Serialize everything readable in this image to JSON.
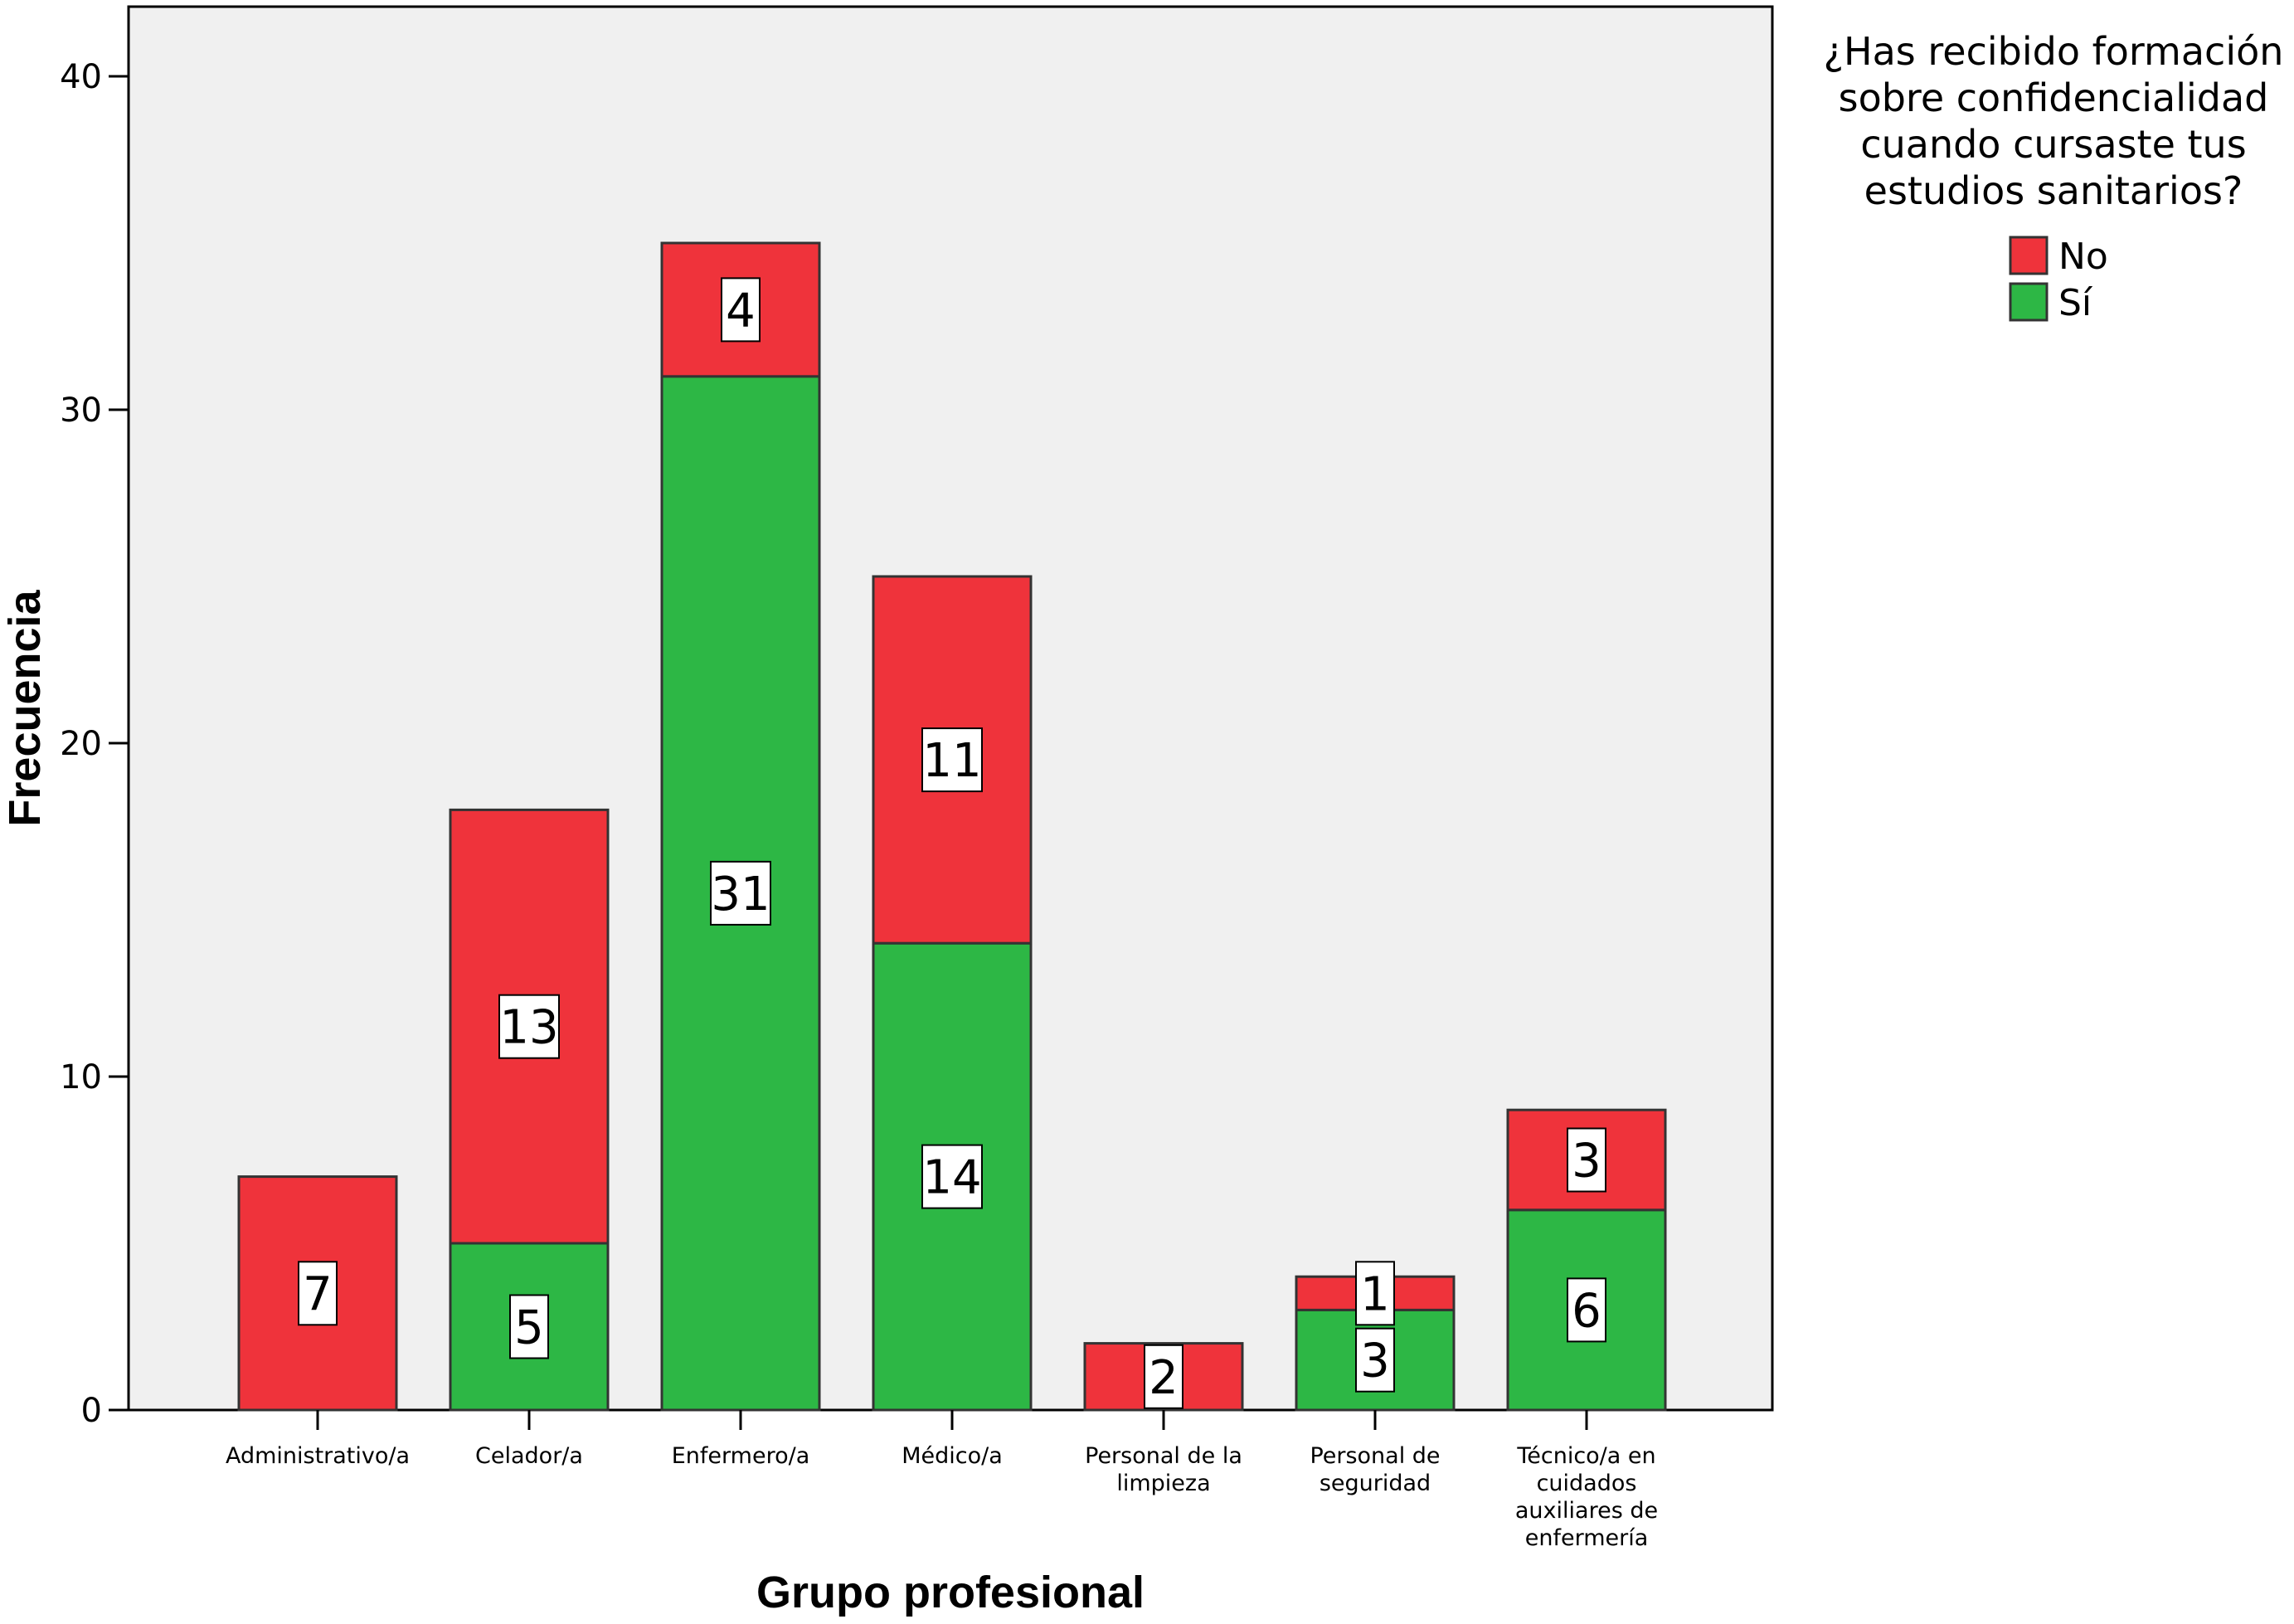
{
  "chart_data": {
    "type": "bar",
    "stacked": true,
    "xlabel": "Grupo profesional",
    "ylabel": "Frecuencia",
    "ylim": [
      0,
      42
    ],
    "yticks": [
      0,
      10,
      20,
      30,
      40
    ],
    "grid": false,
    "legend_position": "top-right",
    "legend_title_lines": [
      "¿Has recibido formación",
      "sobre confidencialidad",
      "cuando cursaste tus",
      "estudios sanitarios?"
    ],
    "categories": [
      [
        "Administrativo/a"
      ],
      [
        "Celador/a"
      ],
      [
        "Enfermero/a"
      ],
      [
        "Médico/a"
      ],
      [
        "Personal de la",
        "limpieza"
      ],
      [
        "Personal de",
        "seguridad"
      ],
      [
        "Técnico/a en",
        "cuidados",
        "auxiliares de",
        "enfermería"
      ]
    ],
    "series": [
      {
        "name": "Sí",
        "color": "#2db745",
        "values": [
          0,
          5,
          31,
          14,
          0,
          3,
          6
        ]
      },
      {
        "name": "No",
        "color": "#ef333b",
        "values": [
          7,
          13,
          4,
          11,
          2,
          1,
          3
        ]
      }
    ],
    "legend_order": [
      "No",
      "Sí"
    ],
    "plot_background": "#f0f0f0"
  }
}
